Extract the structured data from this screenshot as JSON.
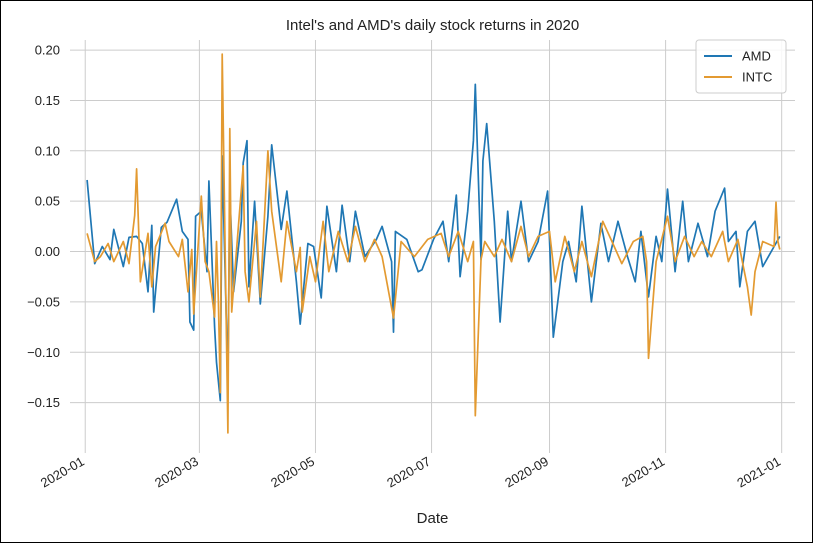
{
  "chart_data": {
    "type": "line",
    "title": "Intel's and AMD's daily stock returns in 2020",
    "xlabel": "Date",
    "ylabel": "",
    "grid": true,
    "legend_position": "top-right",
    "ylim": [
      -0.2,
      0.21
    ],
    "xlim": [
      "2019-12-24",
      "2021-01-08"
    ],
    "y_ticks": [
      0.2,
      0.15,
      0.1,
      0.05,
      0.0,
      -0.05,
      -0.1,
      -0.15
    ],
    "y_tick_labels": [
      "0.20",
      "0.15",
      "0.10",
      "0.05",
      "0.00",
      "−0.05",
      "−0.10",
      "−0.15"
    ],
    "x_ticks": [
      "2020-01-01",
      "2020-03-01",
      "2020-05-01",
      "2020-07-01",
      "2020-09-01",
      "2020-11-01",
      "2021-01-01"
    ],
    "x_tick_labels": [
      "2020-01",
      "2020-03",
      "2020-05",
      "2020-07",
      "2020-09",
      "2020-11",
      "2021-01"
    ],
    "series": [
      {
        "name": "AMD",
        "color": "#1f77b4",
        "points": [
          [
            "2020-01-02",
            0.071
          ],
          [
            "2020-01-06",
            -0.012
          ],
          [
            "2020-01-10",
            0.005
          ],
          [
            "2020-01-14",
            -0.008
          ],
          [
            "2020-01-16",
            0.022
          ],
          [
            "2020-01-21",
            -0.015
          ],
          [
            "2020-01-24",
            0.014
          ],
          [
            "2020-01-28",
            0.015
          ],
          [
            "2020-01-31",
            0.008
          ],
          [
            "2020-02-03",
            -0.04
          ],
          [
            "2020-02-05",
            0.026
          ],
          [
            "2020-02-06",
            -0.06
          ],
          [
            "2020-02-10",
            0.024
          ],
          [
            "2020-02-13",
            0.029
          ],
          [
            "2020-02-18",
            0.052
          ],
          [
            "2020-02-21",
            0.02
          ],
          [
            "2020-02-24",
            0.012
          ],
          [
            "2020-02-25",
            -0.07
          ],
          [
            "2020-02-27",
            -0.078
          ],
          [
            "2020-02-28",
            0.035
          ],
          [
            "2020-03-02",
            0.04
          ],
          [
            "2020-03-05",
            -0.02
          ],
          [
            "2020-03-06",
            0.07
          ],
          [
            "2020-03-09",
            -0.075
          ],
          [
            "2020-03-10",
            -0.11
          ],
          [
            "2020-03-12",
            -0.148
          ],
          [
            "2020-03-13",
            0.095
          ],
          [
            "2020-03-16",
            -0.13
          ],
          [
            "2020-03-17",
            0.06
          ],
          [
            "2020-03-19",
            -0.04
          ],
          [
            "2020-03-23",
            0.03
          ],
          [
            "2020-03-24",
            0.088
          ],
          [
            "2020-03-26",
            0.11
          ],
          [
            "2020-03-27",
            -0.035
          ],
          [
            "2020-03-30",
            0.05
          ],
          [
            "2020-04-02",
            -0.052
          ],
          [
            "2020-04-06",
            0.035
          ],
          [
            "2020-04-08",
            0.106
          ],
          [
            "2020-04-13",
            0.022
          ],
          [
            "2020-04-16",
            0.06
          ],
          [
            "2020-04-21",
            -0.03
          ],
          [
            "2020-04-23",
            -0.072
          ],
          [
            "2020-04-27",
            0.008
          ],
          [
            "2020-04-30",
            0.005
          ],
          [
            "2020-05-04",
            -0.046
          ],
          [
            "2020-05-07",
            0.045
          ],
          [
            "2020-05-12",
            -0.02
          ],
          [
            "2020-05-15",
            0.046
          ],
          [
            "2020-05-19",
            -0.01
          ],
          [
            "2020-05-22",
            0.04
          ],
          [
            "2020-05-27",
            -0.005
          ],
          [
            "2020-06-02",
            0.012
          ],
          [
            "2020-06-05",
            0.025
          ],
          [
            "2020-06-10",
            -0.01
          ],
          [
            "2020-06-11",
            -0.08
          ],
          [
            "2020-06-12",
            0.02
          ],
          [
            "2020-06-18",
            0.012
          ],
          [
            "2020-06-24",
            -0.02
          ],
          [
            "2020-06-26",
            -0.018
          ],
          [
            "2020-07-02",
            0.012
          ],
          [
            "2020-07-07",
            0.03
          ],
          [
            "2020-07-10",
            -0.01
          ],
          [
            "2020-07-14",
            0.056
          ],
          [
            "2020-07-16",
            -0.025
          ],
          [
            "2020-07-20",
            0.04
          ],
          [
            "2020-07-23",
            0.11
          ],
          [
            "2020-07-24",
            0.166
          ],
          [
            "2020-07-27",
            -0.008
          ],
          [
            "2020-07-28",
            0.09
          ],
          [
            "2020-07-30",
            0.127
          ],
          [
            "2020-08-03",
            0.03
          ],
          [
            "2020-08-06",
            -0.07
          ],
          [
            "2020-08-10",
            0.04
          ],
          [
            "2020-08-12",
            -0.01
          ],
          [
            "2020-08-17",
            0.05
          ],
          [
            "2020-08-21",
            -0.01
          ],
          [
            "2020-08-26",
            0.01
          ],
          [
            "2020-08-31",
            0.06
          ],
          [
            "2020-09-03",
            -0.085
          ],
          [
            "2020-09-08",
            -0.01
          ],
          [
            "2020-09-11",
            0.01
          ],
          [
            "2020-09-15",
            -0.03
          ],
          [
            "2020-09-18",
            0.045
          ],
          [
            "2020-09-23",
            -0.05
          ],
          [
            "2020-09-28",
            0.028
          ],
          [
            "2020-10-02",
            -0.01
          ],
          [
            "2020-10-07",
            0.03
          ],
          [
            "2020-10-12",
            -0.005
          ],
          [
            "2020-10-16",
            -0.03
          ],
          [
            "2020-10-19",
            0.02
          ],
          [
            "2020-10-23",
            -0.045
          ],
          [
            "2020-10-27",
            0.015
          ],
          [
            "2020-10-30",
            -0.01
          ],
          [
            "2020-11-02",
            0.062
          ],
          [
            "2020-11-06",
            -0.02
          ],
          [
            "2020-11-10",
            0.05
          ],
          [
            "2020-11-13",
            -0.01
          ],
          [
            "2020-11-18",
            0.028
          ],
          [
            "2020-11-23",
            -0.005
          ],
          [
            "2020-11-27",
            0.04
          ],
          [
            "2020-12-02",
            0.063
          ],
          [
            "2020-12-04",
            0.01
          ],
          [
            "2020-12-08",
            0.02
          ],
          [
            "2020-12-10",
            -0.035
          ],
          [
            "2020-12-14",
            0.02
          ],
          [
            "2020-12-18",
            0.03
          ],
          [
            "2020-12-22",
            -0.015
          ],
          [
            "2020-12-28",
            0.005
          ],
          [
            "2020-12-31",
            0.015
          ]
        ]
      },
      {
        "name": "INTC",
        "color": "#e39a31",
        "points": [
          [
            "2020-01-02",
            0.018
          ],
          [
            "2020-01-06",
            -0.01
          ],
          [
            "2020-01-09",
            -0.005
          ],
          [
            "2020-01-13",
            0.008
          ],
          [
            "2020-01-16",
            -0.01
          ],
          [
            "2020-01-21",
            0.01
          ],
          [
            "2020-01-24",
            -0.012
          ],
          [
            "2020-01-27",
            0.036
          ],
          [
            "2020-01-28",
            0.082
          ],
          [
            "2020-01-30",
            -0.03
          ],
          [
            "2020-02-03",
            0.018
          ],
          [
            "2020-02-05",
            -0.035
          ],
          [
            "2020-02-07",
            0.005
          ],
          [
            "2020-02-12",
            0.028
          ],
          [
            "2020-02-14",
            0.01
          ],
          [
            "2020-02-19",
            -0.005
          ],
          [
            "2020-02-21",
            0.012
          ],
          [
            "2020-02-24",
            -0.04
          ],
          [
            "2020-02-26",
            0.002
          ],
          [
            "2020-02-27",
            -0.062
          ],
          [
            "2020-03-02",
            0.055
          ],
          [
            "2020-03-04",
            -0.01
          ],
          [
            "2020-03-06",
            -0.02
          ],
          [
            "2020-03-09",
            -0.065
          ],
          [
            "2020-03-10",
            0.01
          ],
          [
            "2020-03-11",
            -0.05
          ],
          [
            "2020-03-12",
            -0.14
          ],
          [
            "2020-03-13",
            0.196
          ],
          [
            "2020-03-16",
            -0.18
          ],
          [
            "2020-03-17",
            0.122
          ],
          [
            "2020-03-18",
            -0.06
          ],
          [
            "2020-03-20",
            -0.01
          ],
          [
            "2020-03-24",
            0.085
          ],
          [
            "2020-03-25",
            -0.02
          ],
          [
            "2020-03-27",
            -0.05
          ],
          [
            "2020-03-31",
            0.03
          ],
          [
            "2020-04-02",
            -0.045
          ],
          [
            "2020-04-06",
            0.1
          ],
          [
            "2020-04-08",
            0.04
          ],
          [
            "2020-04-13",
            -0.03
          ],
          [
            "2020-04-16",
            0.03
          ],
          [
            "2020-04-21",
            -0.02
          ],
          [
            "2020-04-23",
            0.004
          ],
          [
            "2020-04-24",
            -0.06
          ],
          [
            "2020-04-28",
            -0.005
          ],
          [
            "2020-05-01",
            -0.03
          ],
          [
            "2020-05-05",
            0.03
          ],
          [
            "2020-05-08",
            -0.02
          ],
          [
            "2020-05-13",
            0.02
          ],
          [
            "2020-05-18",
            -0.01
          ],
          [
            "2020-05-22",
            0.025
          ],
          [
            "2020-05-27",
            -0.01
          ],
          [
            "2020-06-01",
            0.012
          ],
          [
            "2020-06-05",
            -0.005
          ],
          [
            "2020-06-11",
            -0.066
          ],
          [
            "2020-06-15",
            0.01
          ],
          [
            "2020-06-22",
            -0.005
          ],
          [
            "2020-06-29",
            0.012
          ],
          [
            "2020-07-06",
            0.018
          ],
          [
            "2020-07-10",
            -0.005
          ],
          [
            "2020-07-15",
            0.02
          ],
          [
            "2020-07-20",
            -0.01
          ],
          [
            "2020-07-23",
            0.01
          ],
          [
            "2020-07-24",
            -0.163
          ],
          [
            "2020-07-27",
            -0.008
          ],
          [
            "2020-07-29",
            0.01
          ],
          [
            "2020-08-03",
            -0.005
          ],
          [
            "2020-08-07",
            0.012
          ],
          [
            "2020-08-12",
            -0.01
          ],
          [
            "2020-08-17",
            0.025
          ],
          [
            "2020-08-21",
            -0.005
          ],
          [
            "2020-08-26",
            0.015
          ],
          [
            "2020-09-01",
            0.02
          ],
          [
            "2020-09-04",
            -0.03
          ],
          [
            "2020-09-09",
            0.015
          ],
          [
            "2020-09-14",
            -0.02
          ],
          [
            "2020-09-18",
            0.01
          ],
          [
            "2020-09-23",
            -0.025
          ],
          [
            "2020-09-29",
            0.03
          ],
          [
            "2020-10-05",
            0.005
          ],
          [
            "2020-10-09",
            -0.012
          ],
          [
            "2020-10-15",
            0.01
          ],
          [
            "2020-10-20",
            0.015
          ],
          [
            "2020-10-22",
            -0.01
          ],
          [
            "2020-10-23",
            -0.106
          ],
          [
            "2020-10-27",
            -0.01
          ],
          [
            "2020-11-02",
            0.035
          ],
          [
            "2020-11-06",
            -0.01
          ],
          [
            "2020-11-11",
            0.015
          ],
          [
            "2020-11-16",
            -0.005
          ],
          [
            "2020-11-20",
            0.01
          ],
          [
            "2020-11-25",
            -0.005
          ],
          [
            "2020-12-01",
            0.02
          ],
          [
            "2020-12-04",
            -0.01
          ],
          [
            "2020-12-09",
            0.012
          ],
          [
            "2020-12-14",
            -0.035
          ],
          [
            "2020-12-16",
            -0.063
          ],
          [
            "2020-12-18",
            -0.02
          ],
          [
            "2020-12-22",
            0.01
          ],
          [
            "2020-12-28",
            0.005
          ],
          [
            "2020-12-29",
            0.049
          ],
          [
            "2020-12-30",
            0.01
          ],
          [
            "2020-12-31",
            0.002
          ]
        ]
      }
    ]
  }
}
